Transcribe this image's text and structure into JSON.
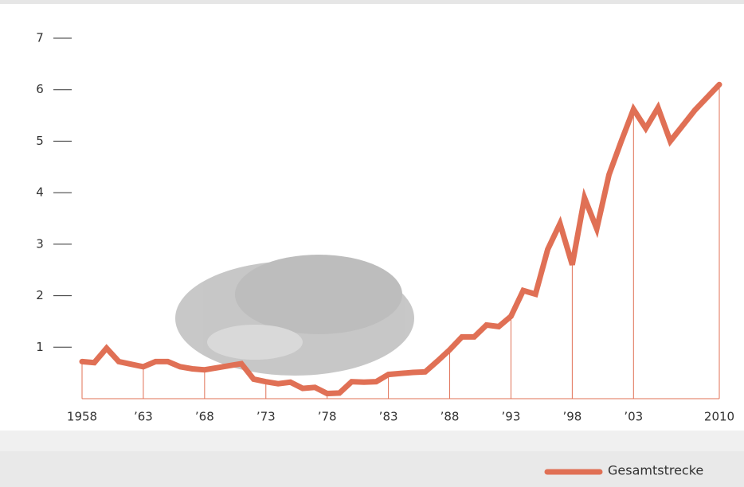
{
  "chart_data": {
    "type": "line",
    "x": [
      1958,
      1959,
      1960,
      1961,
      1962,
      1963,
      1964,
      1965,
      1966,
      1967,
      1968,
      1969,
      1970,
      1971,
      1972,
      1973,
      1974,
      1975,
      1976,
      1977,
      1978,
      1979,
      1980,
      1981,
      1982,
      1983,
      1984,
      1985,
      1986,
      1987,
      1988,
      1989,
      1990,
      1991,
      1992,
      1993,
      1994,
      1995,
      1996,
      1997,
      1998,
      1999,
      2000,
      2001,
      2002,
      2003,
      2004,
      2005,
      2006,
      2007,
      2008,
      2009,
      2010
    ],
    "series": [
      {
        "name": "Gesamtstrecke",
        "color": "#e07055",
        "values": [
          0.72,
          0.7,
          0.98,
          0.72,
          0.67,
          0.62,
          0.72,
          0.72,
          0.62,
          0.58,
          0.56,
          0.6,
          0.64,
          0.68,
          0.38,
          0.33,
          0.29,
          0.32,
          0.2,
          0.22,
          0.1,
          0.11,
          0.33,
          0.32,
          0.33,
          0.47,
          0.49,
          0.51,
          0.52,
          0.73,
          0.95,
          1.2,
          1.2,
          1.43,
          1.4,
          1.6,
          2.1,
          2.03,
          2.9,
          3.4,
          2.6,
          3.9,
          3.3,
          4.35,
          5.0,
          5.62,
          5.25,
          5.65,
          5.0,
          5.3,
          5.6,
          5.85,
          6.1
        ]
      }
    ],
    "xlim": [
      1958,
      2010
    ],
    "xticks": [
      1958,
      {
        "value": 1963,
        "label": "’63"
      },
      {
        "value": 1968,
        "label": "’68"
      },
      {
        "value": 1973,
        "label": "’73"
      },
      {
        "value": 1978,
        "label": "’78"
      },
      {
        "value": 1983,
        "label": "’83"
      },
      {
        "value": 1988,
        "label": "’88"
      },
      {
        "value": 1993,
        "label": "’93"
      },
      {
        "value": 1998,
        "label": "’98"
      },
      {
        "value": 2003,
        "label": "’03"
      },
      2010
    ],
    "ylim": [
      0,
      7
    ],
    "yticks": [
      1,
      2,
      3,
      4,
      5,
      6,
      7
    ]
  }
}
